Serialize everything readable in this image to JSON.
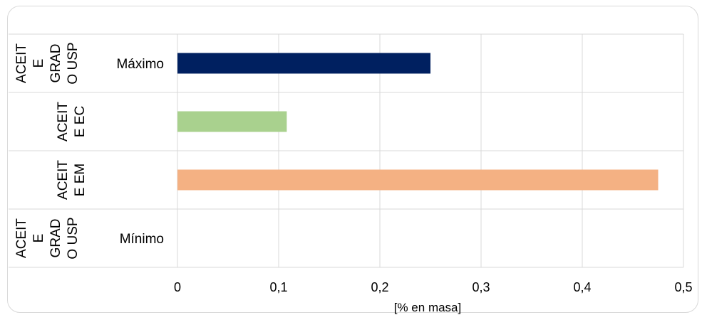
{
  "chart_data": {
    "type": "bar",
    "orientation": "horizontal",
    "title": "",
    "xlabel": "[% en masa]",
    "ylabel": "",
    "xlim": [
      0,
      0.5
    ],
    "x_ticks": [
      "0",
      "0,1",
      "0,2",
      "0,3",
      "0,4",
      "0,5"
    ],
    "grid": true,
    "legend": "none",
    "categories": [
      {
        "group": "ACEITE GRADO USP",
        "group_lines": [
          "ACEIT",
          "E",
          "GRAD",
          "O USP"
        ],
        "sub": "Máximo",
        "value": 0.25,
        "color": "#002060"
      },
      {
        "group": "ACEITE EC",
        "group_lines": [
          "ACEIT",
          "E EC"
        ],
        "sub": "",
        "value": 0.108,
        "color": "#a9d18e"
      },
      {
        "group": "ACEITE EM",
        "group_lines": [
          "ACEIT",
          "E EM"
        ],
        "sub": "",
        "value": 0.475,
        "color": "#f4b183"
      },
      {
        "group": "ACEITE GRADO USP",
        "group_lines": [
          "ACEIT",
          "E",
          "GRAD",
          "O USP"
        ],
        "sub": "Mínimo",
        "value": 0,
        "color": "#5b9bd5"
      }
    ]
  }
}
